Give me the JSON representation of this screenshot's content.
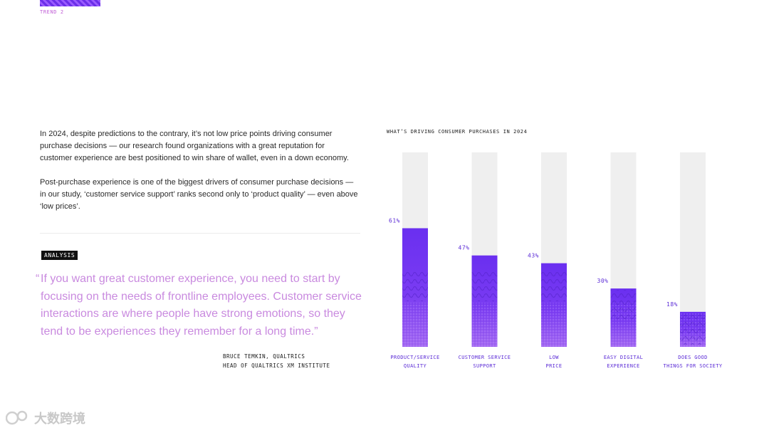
{
  "header": {
    "trend_label": "TREND 2"
  },
  "intro": {
    "paragraph_1": "In 2024, despite predictions to the contrary, it’s not low price points driving consumer purchase decisions — our research found organizations with a great reputation for customer experience are best positioned to win share of wallet, even in a down economy.",
    "paragraph_2": "Post-purchase experience is one of the biggest drivers of consumer purchase decisions — in our study, ‘customer service support’ ranks second only to ‘product quality’ — even above ‘low prices’."
  },
  "analysis": {
    "tag": "ANALYSIS",
    "open_quote": "“",
    "quote": "If you want great customer experience, you need to start by focusing on the needs of frontline employees. Customer service interactions are where people have strong emotions, so they tend to be experiences they remember for a long time.”",
    "author_line_1": "BRUCE TEMKIN, QUALTRICS",
    "author_line_2": "HEAD OF QUALTRICS XM INSTITUTE"
  },
  "chart_data": {
    "type": "bar",
    "title": "WHAT’S DRIVING CONSUMER PURCHASES IN 2024",
    "categories": [
      [
        "PRODUCT/SERVICE",
        "QUALITY"
      ],
      [
        "CUSTOMER SERVICE",
        "SUPPORT"
      ],
      [
        "LOW",
        "PRICE"
      ],
      [
        "EASY DIGITAL",
        "EXPERIENCE"
      ],
      [
        "DOES GOOD",
        "THINGS FOR SOCIETY"
      ]
    ],
    "values": [
      61,
      47,
      43,
      30,
      18
    ],
    "value_labels": [
      "61%",
      "47%",
      "43%",
      "30%",
      "18%"
    ],
    "ylim": [
      0,
      100
    ],
    "xlabel": "",
    "ylabel": "",
    "colors": {
      "track": "#efefef",
      "bar_top": "#6a2ff0",
      "bar_mid": "#7b3ef2",
      "bar_bottom": "#9c5cf0",
      "label": "#5b2bd6"
    }
  },
  "watermark": {
    "text": "大数跨境"
  }
}
